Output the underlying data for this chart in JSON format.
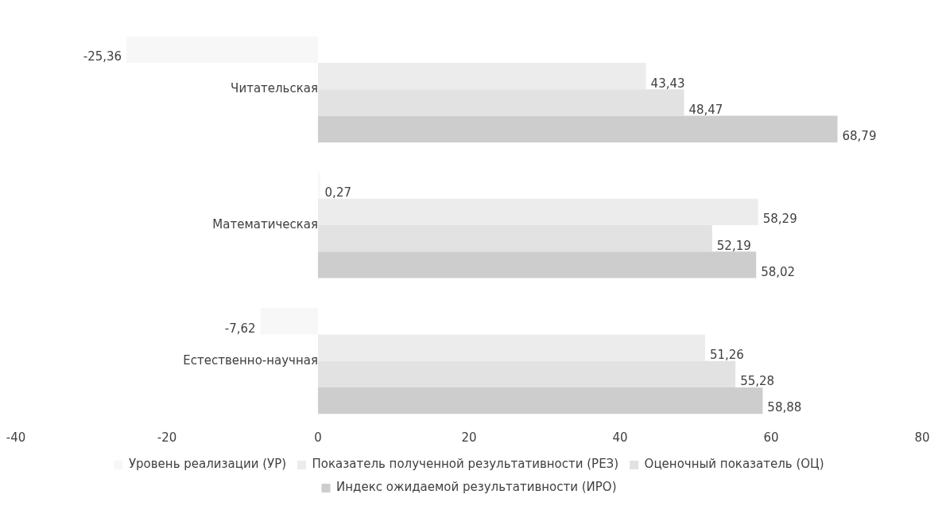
{
  "chart_data": {
    "type": "bar",
    "orientation": "horizontal",
    "categories": [
      "Читательская",
      "Математическая",
      "Естественно-научная"
    ],
    "series": [
      {
        "name": "Уровень реализации (УР)",
        "color": "#f7f7f7",
        "values": [
          -25.36,
          0.27,
          -7.62
        ],
        "value_labels": [
          "-25,36",
          "0,27",
          "-7,62"
        ]
      },
      {
        "name": "Показатель полученной результативности (РЕЗ)",
        "color": "#ececec",
        "values": [
          43.43,
          58.29,
          51.26
        ],
        "value_labels": [
          "43,43",
          "58,29",
          "51,26"
        ]
      },
      {
        "name": "Оценочный показатель (ОЦ)",
        "color": "#e2e2e2",
        "values": [
          48.47,
          52.19,
          55.28
        ],
        "value_labels": [
          "48,47",
          "52,19",
          "55,28"
        ]
      },
      {
        "name": "Индекс ожидаемой результативности (ИРО)",
        "color": "#cdcdcd",
        "values": [
          68.79,
          58.02,
          58.88
        ],
        "value_labels": [
          "68,79",
          "58,02",
          "58,88"
        ]
      }
    ],
    "xlim": [
      -40,
      80
    ],
    "xticks": [
      -40,
      -20,
      0,
      20,
      40,
      60,
      80
    ],
    "grid": false,
    "legend": "bottom"
  }
}
